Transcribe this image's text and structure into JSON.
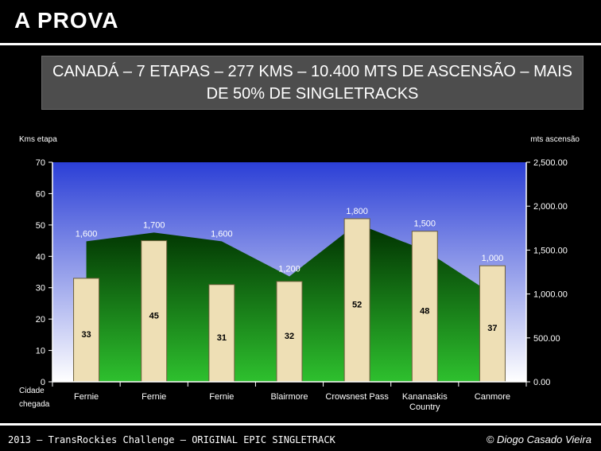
{
  "slide": {
    "title": "A PROVA",
    "banner_line1": "CANADÁ  – 7 ETAPAS  – 277 KMS – 10.400 MTS DE ASCENSÃO – MAIS",
    "banner_line2": "DE 50% DE SINGLETRACKS"
  },
  "footer": {
    "left": "2013 – TransRockies Challenge – ORIGINAL EPIC SINGLETRACK",
    "right": "© Diogo Casado Vieira"
  },
  "chart_data": {
    "type": "bar",
    "left_axis_label": "Kms etapa",
    "right_axis_label": "mts ascensão",
    "x_axis_label_line1": "Cidade",
    "x_axis_label_line2": "chegada",
    "categories": [
      [
        "Fernie"
      ],
      [
        "Fernie"
      ],
      [
        "Fernie"
      ],
      [
        "Blairmore"
      ],
      [
        "Crowsnest Pass"
      ],
      [
        "Kananaskis",
        "Country"
      ],
      [
        "Canmore"
      ]
    ],
    "ylim_left": [
      0,
      70
    ],
    "yticks_left": [
      "0",
      "10",
      "20",
      "30",
      "40",
      "50",
      "60",
      "70"
    ],
    "ylim_right": [
      0,
      2500
    ],
    "yticks_right": [
      "0.00",
      "500.00",
      "1,000.00",
      "1,500.00",
      "2,000.00",
      "2,500.00"
    ],
    "series": [
      {
        "name": "Kms etapa",
        "type": "bar",
        "axis": "left",
        "values": [
          33,
          45,
          31,
          32,
          52,
          48,
          37
        ],
        "labels": [
          "33",
          "45",
          "31",
          "32",
          "52",
          "48",
          "37"
        ]
      },
      {
        "name": "mts ascensão",
        "type": "area",
        "axis": "right",
        "values": [
          1600,
          1700,
          1600,
          1200,
          1800,
          1500,
          1000
        ],
        "labels": [
          "1,600",
          "1,700",
          "1,600",
          "1,200",
          "1,800",
          "1,500",
          "1,000"
        ]
      }
    ],
    "colors": {
      "bar_fill": "#eedfb5",
      "bar_stroke": "#6b5e3a",
      "area_top": "#003000",
      "area_bottom": "#2ec02e",
      "plot_top": "#2b3fd6",
      "plot_bottom": "#ffffff"
    }
  }
}
